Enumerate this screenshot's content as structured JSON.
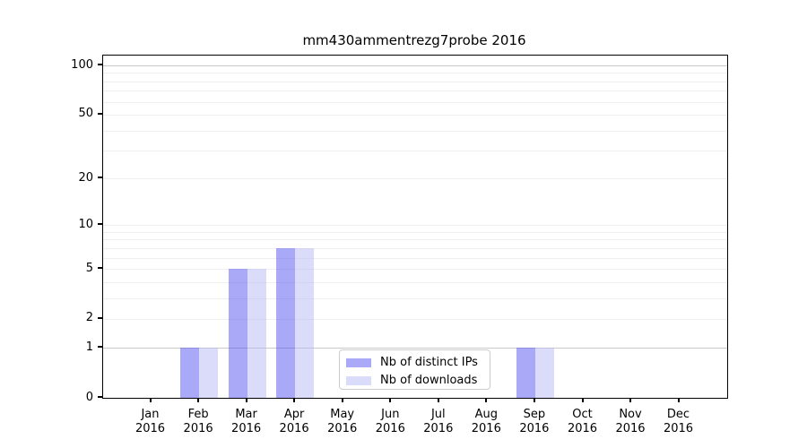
{
  "chart_data": {
    "type": "bar",
    "title": "mm430ammentrezg7probe 2016",
    "x_categories": [
      "Jan",
      "Feb",
      "Mar",
      "Apr",
      "May",
      "Jun",
      "Jul",
      "Aug",
      "Sep",
      "Oct",
      "Nov",
      "Dec"
    ],
    "x_year": "2016",
    "series": [
      {
        "name": "Nb of distinct IPs",
        "color": "rgba(83,83,239,0.5)",
        "legend_color": "#a9a9f7",
        "values": [
          0,
          1,
          5,
          7,
          0,
          0,
          0,
          0,
          1,
          0,
          0,
          0
        ]
      },
      {
        "name": "Nb of downloads",
        "color": "rgba(183,183,245,0.5)",
        "legend_color": "#dbdbfa",
        "values": [
          0,
          1,
          5,
          7,
          0,
          0,
          0,
          0,
          1,
          0,
          0,
          0
        ]
      }
    ],
    "y_scale": "log1p",
    "ylim": [
      0,
      115
    ],
    "y_tick_values": [
      0,
      1,
      2,
      5,
      10,
      20,
      50,
      100
    ],
    "gridlines": {
      "major_values": [
        1,
        100
      ],
      "minor_values": [
        2,
        3,
        4,
        5,
        6,
        7,
        8,
        9,
        10,
        20,
        30,
        40,
        50,
        60,
        70,
        80,
        90
      ],
      "major_color": "#c9c9c9",
      "minor_color": "#efefef"
    },
    "legend_position": "bottom-center"
  }
}
